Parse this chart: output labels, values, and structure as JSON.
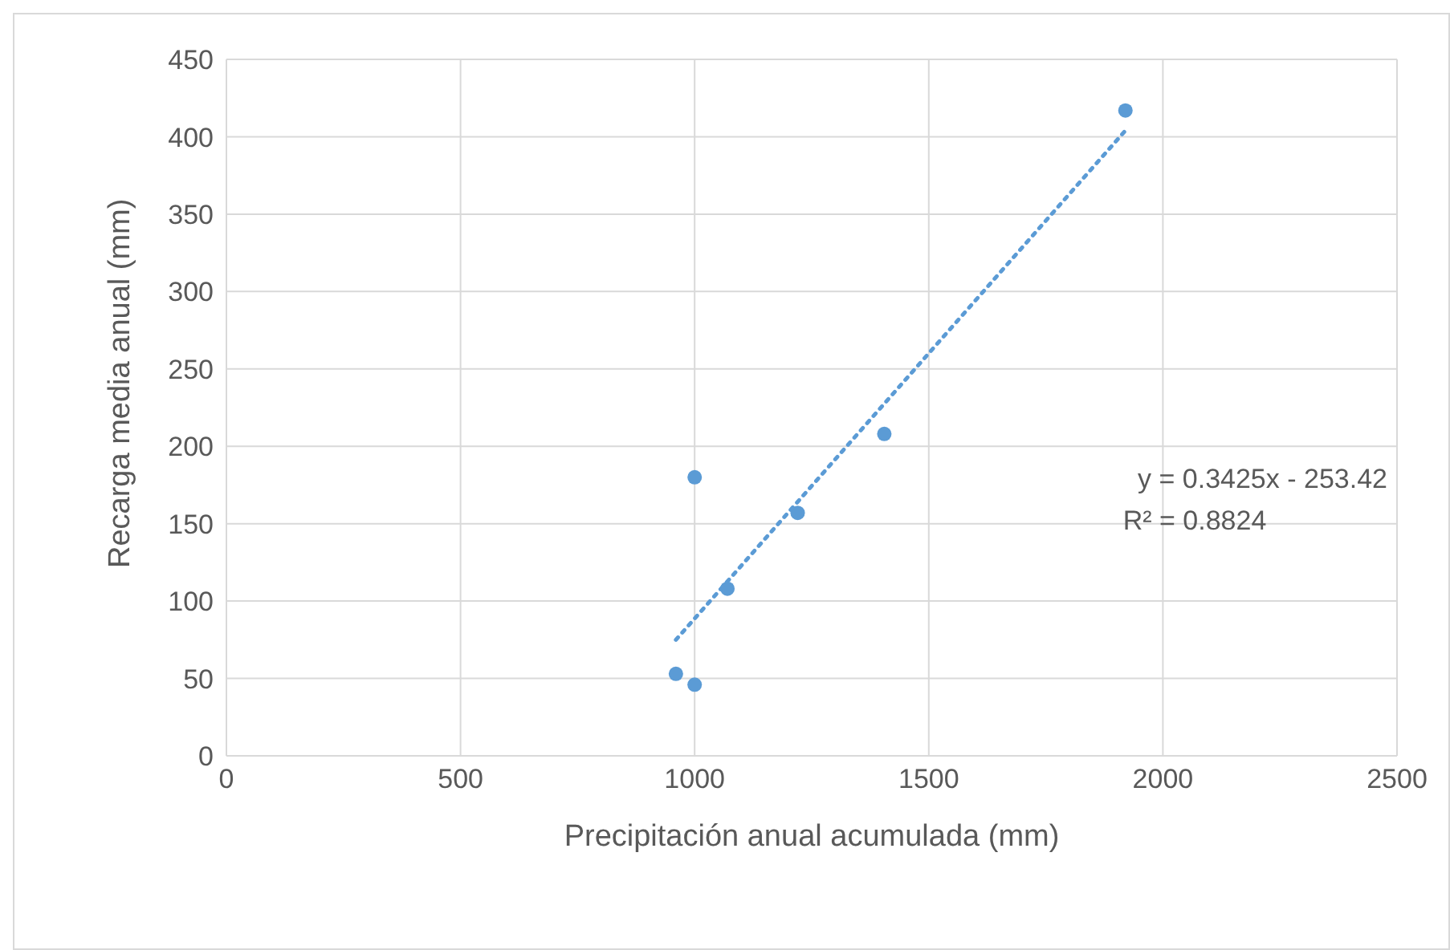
{
  "chart_data": {
    "type": "scatter",
    "xlabel": "Precipitación anual acumulada (mm)",
    "ylabel": "Recarga media anual (mm)",
    "xlim": [
      0,
      2500
    ],
    "xticks": [
      0,
      500,
      1000,
      1500,
      2000,
      2500
    ],
    "ylim": [
      0,
      450
    ],
    "yticks": [
      0,
      50,
      100,
      150,
      200,
      250,
      300,
      350,
      400,
      450
    ],
    "grid": true,
    "legend": false,
    "marker": "circle",
    "series": [
      {
        "color": "#5b9bd5",
        "x": [
          960,
          1000,
          1000,
          1070,
          1220,
          1405,
          1920
        ],
        "values": [
          53,
          46,
          180,
          108,
          157,
          208,
          417
        ]
      },
      {
        "type": "line",
        "color": "#5b9bd5",
        "line_style": "dotted",
        "marker": "none",
        "x": [
          960,
          1920
        ],
        "values": [
          75,
          404
        ]
      }
    ],
    "annotations": [
      "y = 0.3425x - 253.42",
      "R² = 0.8824"
    ]
  }
}
